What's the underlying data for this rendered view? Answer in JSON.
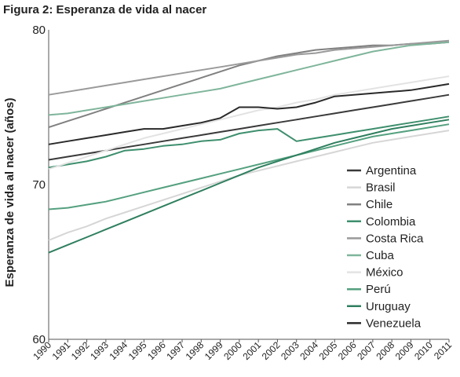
{
  "chart_data": {
    "type": "line",
    "title": "Figura 2: Esperanza de vida al nacer",
    "xlabel": "",
    "ylabel": "Esperanza de vida al nacer (años)",
    "x": [
      "1990",
      "1991",
      "1992",
      "1993",
      "1994",
      "1995",
      "1996",
      "1997",
      "1998",
      "1999",
      "2000",
      "2001",
      "2002",
      "2003",
      "2004",
      "2005",
      "2006",
      "2007",
      "2008",
      "2009",
      "2010",
      "2011"
    ],
    "ylim": [
      60,
      80
    ],
    "yticks": [
      60,
      70,
      80
    ],
    "grid": false,
    "legend_position": "right",
    "series": [
      {
        "name": "Argentina",
        "color": "#3a3a3a",
        "values": [
          71.6,
          71.8,
          72.0,
          72.2,
          72.4,
          72.6,
          72.8,
          73.0,
          73.2,
          73.4,
          73.6,
          73.8,
          74.0,
          74.2,
          74.4,
          74.6,
          74.8,
          75.0,
          75.2,
          75.4,
          75.6,
          75.8
        ]
      },
      {
        "name": "Brasil",
        "color": "#d6d6d6",
        "values": [
          66.4,
          66.9,
          67.3,
          67.8,
          68.2,
          68.6,
          69.0,
          69.4,
          69.8,
          70.2,
          70.6,
          70.9,
          71.2,
          71.5,
          71.8,
          72.1,
          72.4,
          72.7,
          72.9,
          73.1,
          73.3,
          73.5
        ]
      },
      {
        "name": "Chile",
        "color": "#808080",
        "values": [
          73.7,
          74.1,
          74.5,
          74.9,
          75.3,
          75.7,
          76.1,
          76.5,
          76.9,
          77.3,
          77.7,
          78.0,
          78.3,
          78.5,
          78.7,
          78.8,
          78.9,
          79.0,
          79.0,
          79.1,
          79.1,
          79.2
        ]
      },
      {
        "name": "Colombia",
        "color": "#3e8f6e",
        "values": [
          71.1,
          71.3,
          71.5,
          71.8,
          72.2,
          72.3,
          72.5,
          72.6,
          72.8,
          72.9,
          73.3,
          73.5,
          73.6,
          72.8,
          73.0,
          73.2,
          73.4,
          73.6,
          73.8,
          74.0,
          74.2,
          74.4
        ]
      },
      {
        "name": "Costa Rica",
        "color": "#9a9a9a",
        "values": [
          75.8,
          76.0,
          76.2,
          76.4,
          76.6,
          76.8,
          77.0,
          77.2,
          77.4,
          77.6,
          77.8,
          78.0,
          78.2,
          78.4,
          78.5,
          78.7,
          78.8,
          78.9,
          79.0,
          79.1,
          79.2,
          79.3
        ]
      },
      {
        "name": "Cuba",
        "color": "#7fb59b",
        "values": [
          74.5,
          74.6,
          74.8,
          75.0,
          75.2,
          75.4,
          75.6,
          75.8,
          76.0,
          76.2,
          76.5,
          76.8,
          77.1,
          77.4,
          77.7,
          78.0,
          78.3,
          78.6,
          78.8,
          79.0,
          79.1,
          79.2
        ]
      },
      {
        "name": "México",
        "color": "#e3e3e3",
        "values": [
          71.0,
          71.4,
          71.8,
          72.2,
          72.6,
          73.0,
          73.3,
          73.6,
          73.9,
          74.2,
          74.5,
          74.8,
          75.0,
          75.3,
          75.5,
          75.8,
          76.0,
          76.2,
          76.4,
          76.6,
          76.8,
          77.0
        ]
      },
      {
        "name": "Perú",
        "color": "#54a07f",
        "values": [
          68.4,
          68.5,
          68.7,
          68.9,
          69.2,
          69.5,
          69.8,
          70.1,
          70.4,
          70.7,
          71.0,
          71.3,
          71.6,
          71.9,
          72.2,
          72.5,
          72.8,
          73.1,
          73.3,
          73.5,
          73.7,
          73.9
        ]
      },
      {
        "name": "Uruguay",
        "color": "#2f7f5f",
        "values": [
          65.6,
          66.1,
          66.6,
          67.1,
          67.6,
          68.1,
          68.6,
          69.1,
          69.6,
          70.1,
          70.6,
          71.1,
          71.5,
          71.9,
          72.3,
          72.7,
          73.0,
          73.3,
          73.6,
          73.8,
          74.0,
          74.2
        ]
      },
      {
        "name": "Venezuela",
        "color": "#2a2a2a",
        "values": [
          72.6,
          72.8,
          73.0,
          73.2,
          73.4,
          73.6,
          73.6,
          73.8,
          74.0,
          74.3,
          75.0,
          75.0,
          74.9,
          75.0,
          75.3,
          75.7,
          75.8,
          75.9,
          76.0,
          76.1,
          76.3,
          76.5
        ]
      }
    ]
  }
}
